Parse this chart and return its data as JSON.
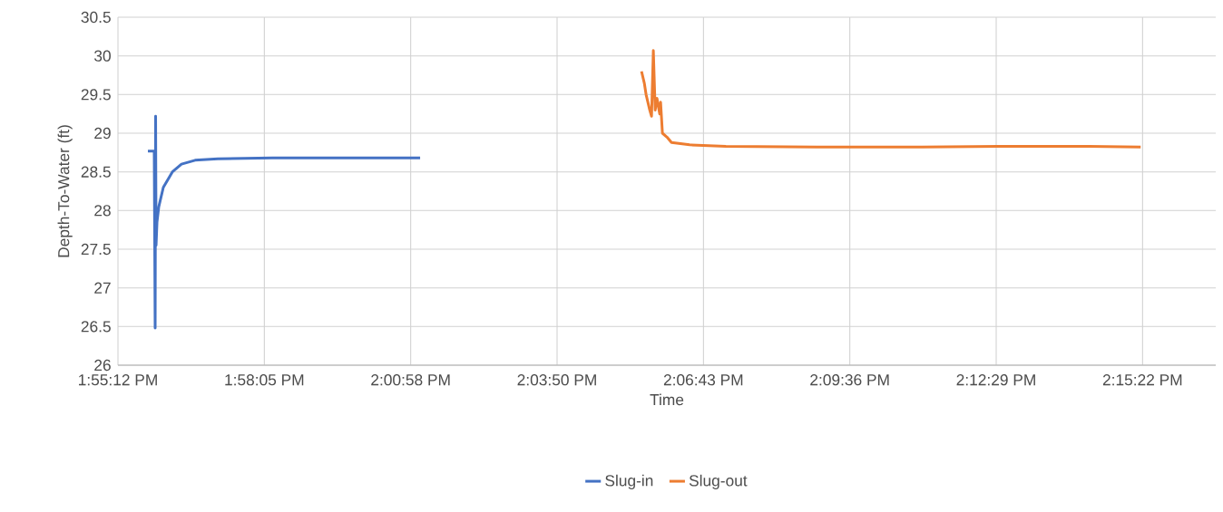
{
  "chart_data": {
    "type": "line",
    "xlabel": "Time",
    "ylabel": "Depth-To-Water (ft)",
    "xlim": [
      13.92,
      14.28
    ],
    "ylim": [
      26,
      30.5
    ],
    "xticks": [
      {
        "value": 13.92,
        "label": "1:55:12 PM"
      },
      {
        "value": 13.968,
        "label": "1:58:05 PM"
      },
      {
        "value": 14.016,
        "label": "2:00:58 PM"
      },
      {
        "value": 14.064,
        "label": "2:03:50 PM"
      },
      {
        "value": 14.112,
        "label": "2:06:43 PM"
      },
      {
        "value": 14.16,
        "label": "2:09:36 PM"
      },
      {
        "value": 14.208,
        "label": "2:12:29 PM"
      },
      {
        "value": 14.256,
        "label": "2:15:22 PM"
      }
    ],
    "yticks": [
      26,
      26.5,
      27,
      27.5,
      28,
      28.5,
      29,
      29.5,
      30,
      30.5
    ],
    "grid": true,
    "legend": "bottom",
    "series": [
      {
        "name": "Slug-in",
        "color": "#4472c4",
        "x": [
          13.92982,
          13.9319,
          13.9322,
          13.93235,
          13.9325,
          13.9328,
          13.93339,
          13.93488,
          13.93785,
          13.94083,
          13.94529,
          13.95273,
          13.97059,
          14.00035,
          14.01909
        ],
        "values": [
          28.77,
          28.77,
          26.48,
          29.22,
          27.55,
          27.85,
          28.05,
          28.3,
          28.5,
          28.6,
          28.65,
          28.67,
          28.68,
          28.68,
          28.68
        ]
      },
      {
        "name": "Slug-out",
        "color": "#ed7d31",
        "x": [
          14.0917,
          14.0926,
          14.09319,
          14.09438,
          14.09498,
          14.09557,
          14.09617,
          14.09676,
          14.09766,
          14.09795,
          14.09855,
          14.10004,
          14.10152,
          14.10747,
          14.11938,
          14.14914,
          14.17889,
          14.20865,
          14.23841,
          14.25537
        ],
        "values": [
          29.8,
          29.65,
          29.5,
          29.3,
          29.22,
          30.07,
          29.3,
          29.45,
          29.25,
          29.4,
          29.0,
          28.95,
          28.88,
          28.85,
          28.83,
          28.82,
          28.82,
          28.83,
          28.83,
          28.82
        ]
      }
    ]
  }
}
